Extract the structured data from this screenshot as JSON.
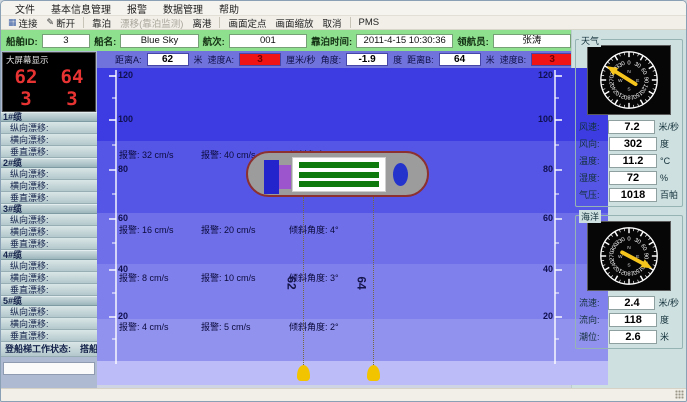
{
  "menu": {
    "items": [
      "文件",
      "基本信息管理",
      "报警",
      "数据管理",
      "帮助"
    ]
  },
  "toolbar": {
    "connect": "连接",
    "disconnect": "断开",
    "berth": "靠泊",
    "drift": "漂移(靠泊监测)",
    "depart": "离港",
    "fixpoint": "画面定点",
    "zoom": "画面缩放",
    "cancel": "取消",
    "pms": "PMS"
  },
  "infobar": {
    "ship_id_label": "船舶ID:",
    "ship_id": "3",
    "ship_name_label": "船名:",
    "ship_name": "Blue Sky",
    "voyage_label": "航次:",
    "voyage": "001",
    "berth_time_label": "靠泊时间:",
    "berth_time": "2011-4-15 10:30:36",
    "pilot_label": "领航员:",
    "pilot": "张涛"
  },
  "display_panel": {
    "title": "大屏幕显示",
    "values": [
      "62",
      "64",
      "3",
      "3"
    ]
  },
  "cables": [
    {
      "title": "1#缆",
      "rows": [
        "纵向漂移:",
        "横向漂移:",
        "垂直漂移:"
      ]
    },
    {
      "title": "2#缆",
      "rows": [
        "纵向漂移:",
        "横向漂移:",
        "垂直漂移:"
      ]
    },
    {
      "title": "3#缆",
      "rows": [
        "纵向漂移:",
        "横向漂移:",
        "垂直漂移:"
      ]
    },
    {
      "title": "4#缆",
      "rows": [
        "纵向漂移:",
        "横向漂移:",
        "垂直漂移:"
      ]
    },
    {
      "title": "5#缆",
      "rows": [
        "纵向漂移:",
        "横向漂移:",
        "垂直漂移:"
      ]
    }
  ],
  "ladder": {
    "label": "登船梯工作状态:",
    "value": "搭船"
  },
  "measure_bar": {
    "dist_a_label": "距离A:",
    "dist_a": "62",
    "dist_a_unit": "米",
    "speed_a_label": "速度A:",
    "speed_a": "3",
    "speed_a_unit": "厘米/秒",
    "angle_label": "角度:",
    "angle": "-1.9",
    "angle_unit": "度",
    "dist_b_label": "距离B:",
    "dist_b": "64",
    "dist_b_unit": "米",
    "speed_b_label": "速度B:",
    "speed_b": "3",
    "speed_b_unit": "厘米/秒"
  },
  "chart": {
    "axis_labels": [
      "120",
      "100",
      "80",
      "60",
      "40",
      "20"
    ],
    "bands": [
      {
        "text1": "报警: 32 cm/s",
        "text2": "报警: 40 cm/s",
        "text3": "倾斜角度: 5°"
      },
      {
        "text1": "报警: 16 cm/s",
        "text2": "报警: 20 cm/s",
        "text3": "倾斜角度: 4°"
      },
      {
        "text1": "报警: 8 cm/s",
        "text2": "报警: 10 cm/s",
        "text3": "倾斜角度: 3°"
      },
      {
        "text1": "报警: 4 cm/s",
        "text2": "报警: 5 cm/s",
        "text3": "倾斜角度: 2°"
      }
    ],
    "line_labels": [
      "62",
      "64"
    ]
  },
  "weather": {
    "title": "天气",
    "needle_deg": 302,
    "rows": [
      {
        "label": "风速:",
        "value": "7.2",
        "unit": "米/秒"
      },
      {
        "label": "风向:",
        "value": "302",
        "unit": "度"
      },
      {
        "label": "温度:",
        "value": "11.2",
        "unit": "°C"
      },
      {
        "label": "湿度:",
        "value": "72",
        "unit": "%"
      },
      {
        "label": "气压:",
        "value": "1018",
        "unit": "百帕"
      }
    ]
  },
  "ocean": {
    "title": "海洋",
    "needle_deg": 118,
    "rows": [
      {
        "label": "流速:",
        "value": "2.4",
        "unit": "米/秒"
      },
      {
        "label": "流向:",
        "value": "118",
        "unit": "度"
      },
      {
        "label": "潮位:",
        "value": "2.6",
        "unit": "米"
      }
    ]
  },
  "gauge": {
    "dial_numbers": [
      "0",
      "30",
      "60",
      "90",
      "120",
      "150",
      "180",
      "210",
      "240",
      "270",
      "300",
      "330"
    ],
    "cardinals": [
      "N",
      "E",
      "S",
      "W"
    ]
  },
  "colors": {
    "alarm_red": "#f01414",
    "info_green": "#8ee08e",
    "needle_yellow": "#f6c51d",
    "display_red": "#e83333"
  }
}
